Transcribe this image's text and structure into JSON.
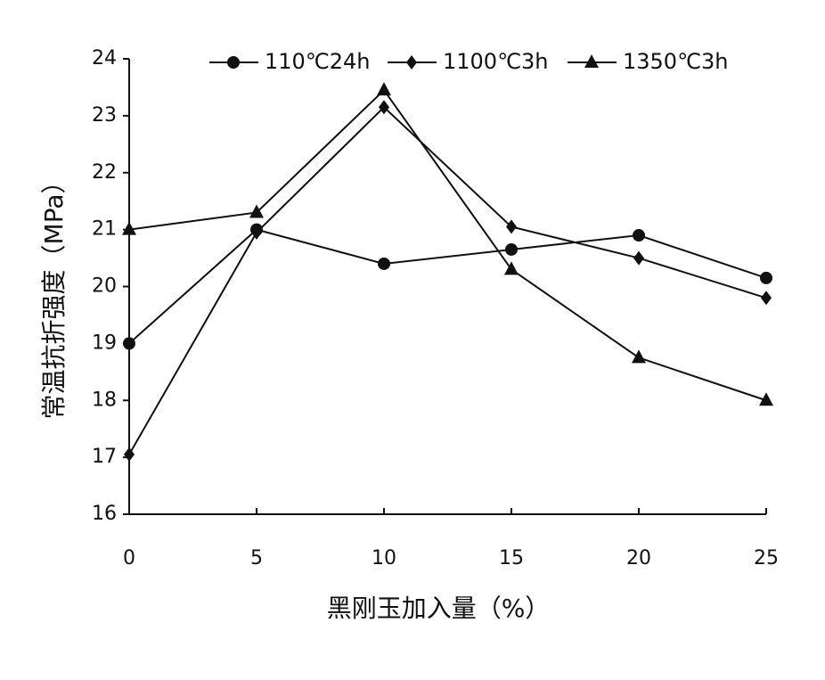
{
  "chart_data": {
    "type": "line",
    "x_label": "黑刚玉加入量（%）",
    "y_label": "常温抗折强度（MPa）",
    "x": [
      0,
      5,
      10,
      15,
      20,
      25
    ],
    "xlim": [
      0,
      25
    ],
    "xticks": [
      0,
      5,
      10,
      15,
      20,
      25
    ],
    "ylim": [
      16,
      24
    ],
    "yticks": [
      16,
      17,
      18,
      19,
      20,
      21,
      22,
      23,
      24
    ],
    "grid": false,
    "legend": "top",
    "series": [
      {
        "name": "110℃24h",
        "color": "#111111",
        "marker": "circle",
        "values": [
          19.0,
          21.0,
          20.4,
          20.65,
          20.9,
          20.15
        ]
      },
      {
        "name": "1100℃3h",
        "color": "#111111",
        "marker": "diamond",
        "values": [
          17.05,
          20.95,
          23.15,
          21.05,
          20.5,
          19.8
        ]
      },
      {
        "name": "1350℃3h",
        "color": "#111111",
        "marker": "triangle",
        "values": [
          21.0,
          21.3,
          23.45,
          20.3,
          18.75,
          18.0
        ]
      }
    ]
  }
}
